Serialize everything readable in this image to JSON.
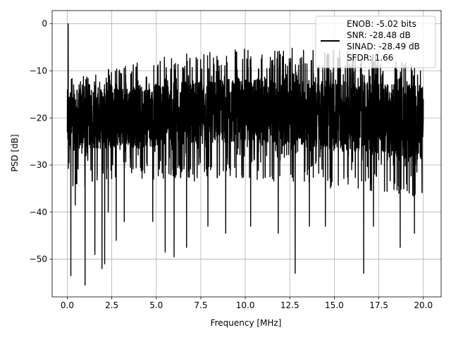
{
  "chart_data": {
    "type": "line",
    "title": "",
    "xlabel": "Frequency [MHz]",
    "ylabel": "PSD [dB]",
    "xlim": [
      -0.85,
      21.0
    ],
    "ylim": [
      -58.0,
      2.8
    ],
    "x_ticks": [
      0.0,
      2.5,
      5.0,
      7.5,
      10.0,
      12.5,
      15.0,
      17.5,
      20.0
    ],
    "x_tick_labels": [
      "0.0",
      "2.5",
      "5.0",
      "7.5",
      "10.0",
      "12.5",
      "15.0",
      "17.5",
      "20.0"
    ],
    "y_ticks": [
      0,
      -10,
      -20,
      -30,
      -40,
      -50
    ],
    "y_tick_labels": [
      "0",
      "−10",
      "−20",
      "−30",
      "−40",
      "−50"
    ],
    "grid": true,
    "legend": {
      "placement": "top-right",
      "line_color": "#000000",
      "entries": [
        "ENOB: -5.02 bits",
        "SNR: -28.48 dB",
        "SINAD: -28.49 dB",
        "SFDR: 1.66"
      ]
    },
    "series": [
      {
        "color": "#000000",
        "x_range": [
          0.0,
          20.0
        ],
        "peak": {
          "x": 0.05,
          "y": 0.0
        },
        "upper_envelope": {
          "x": [
            0.0,
            0.5,
            1.0,
            2.0,
            3.0,
            4.0,
            5.0,
            6.0,
            7.0,
            8.0,
            9.0,
            10.0,
            11.0,
            12.0,
            13.0,
            14.0,
            15.0,
            16.0,
            17.0,
            18.0,
            19.0,
            20.0
          ],
          "y": [
            -8.5,
            -12.0,
            -11.0,
            -9.5,
            -9.0,
            -8.0,
            -7.5,
            -6.5,
            -6.0,
            -5.5,
            -5.0,
            -5.0,
            -4.5,
            -5.0,
            -5.0,
            -5.0,
            -5.5,
            -6.0,
            -6.5,
            -7.0,
            -8.0,
            -10.0
          ]
        },
        "band_top": {
          "x": [
            0.0,
            10.0,
            20.0
          ],
          "y": [
            -14.0,
            -11.5,
            -13.0
          ]
        },
        "band_bottom": {
          "x": [
            0.0,
            10.0,
            20.0
          ],
          "y": [
            -27.0,
            -25.0,
            -29.0
          ]
        },
        "deep_notches": [
          {
            "x": 0.2,
            "y": -53.5
          },
          {
            "x": 0.45,
            "y": -38.5
          },
          {
            "x": 1.0,
            "y": -55.5
          },
          {
            "x": 1.55,
            "y": -49.0
          },
          {
            "x": 1.95,
            "y": -52.0
          },
          {
            "x": 2.1,
            "y": -51.0
          },
          {
            "x": 2.3,
            "y": -40.0
          },
          {
            "x": 2.75,
            "y": -46.0
          },
          {
            "x": 3.2,
            "y": -42.0
          },
          {
            "x": 4.8,
            "y": -42.0
          },
          {
            "x": 5.5,
            "y": -48.5
          },
          {
            "x": 6.0,
            "y": -49.5
          },
          {
            "x": 6.7,
            "y": -47.5
          },
          {
            "x": 7.9,
            "y": -43.0
          },
          {
            "x": 8.9,
            "y": -44.5
          },
          {
            "x": 10.3,
            "y": -43.0
          },
          {
            "x": 11.85,
            "y": -44.5
          },
          {
            "x": 12.8,
            "y": -53.0
          },
          {
            "x": 13.6,
            "y": -43.0
          },
          {
            "x": 14.5,
            "y": -43.0
          },
          {
            "x": 16.65,
            "y": -53.0
          },
          {
            "x": 17.2,
            "y": -43.0
          },
          {
            "x": 18.7,
            "y": -47.5
          },
          {
            "x": 19.5,
            "y": -44.5
          }
        ]
      }
    ]
  }
}
